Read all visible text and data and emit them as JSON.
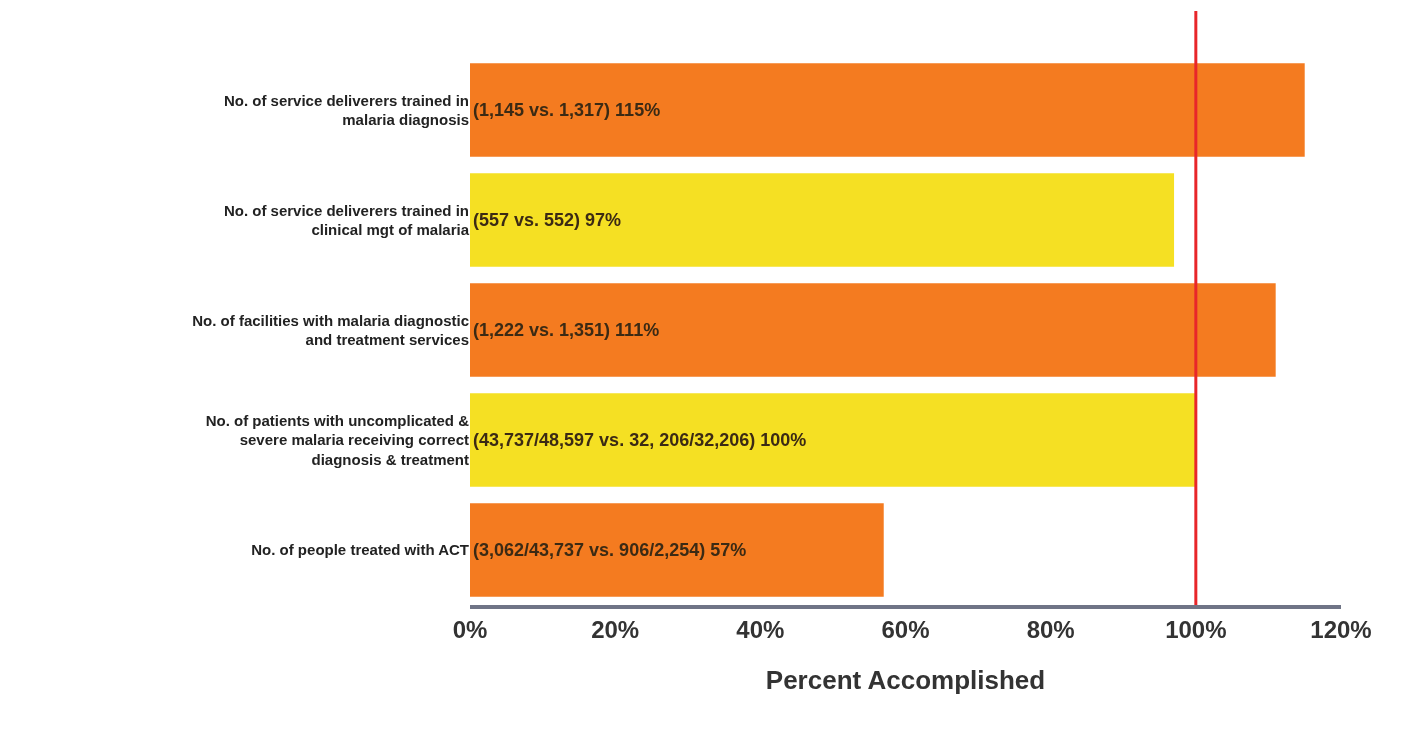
{
  "chart_data": {
    "type": "bar",
    "orientation": "horizontal",
    "categories": [
      "No. of service deliverers trained in malaria diagnosis",
      "No. of service deliverers trained in clinical mgt of malaria",
      "No. of facilities with malaria diagnostic and treatment services",
      "No. of patients with uncomplicated & severe malaria receiving correct diagnosis & treatment",
      "No. of people treated with ACT"
    ],
    "values": [
      115,
      97,
      111,
      100,
      57
    ],
    "colors": [
      "#f47b20",
      "#f5e023",
      "#f47b20",
      "#f5e023",
      "#f47b20"
    ],
    "value_labels": [
      "(1,145 vs. 1,317) 115%",
      "(557 vs. 552) 97%",
      "(1,222 vs. 1,351) 111%",
      "(43,737/48,597 vs. 32, 206/32,206) 100%",
      "(3,062/43,737 vs. 906/2,254) 57%"
    ],
    "xlabel": "Percent Accomplished",
    "xlim": [
      0,
      120
    ],
    "xticks": [
      {
        "value": 0,
        "label": "0%"
      },
      {
        "value": 20,
        "label": "20%"
      },
      {
        "value": 40,
        "label": "40%"
      },
      {
        "value": 60,
        "label": "60%"
      },
      {
        "value": 80,
        "label": "80%"
      },
      {
        "value": 100,
        "label": "100%"
      },
      {
        "value": 120,
        "label": "120%"
      }
    ],
    "ref_lines": [
      {
        "axis": "x",
        "value": 100,
        "color": "#e8262a"
      }
    ],
    "grid": false
  }
}
